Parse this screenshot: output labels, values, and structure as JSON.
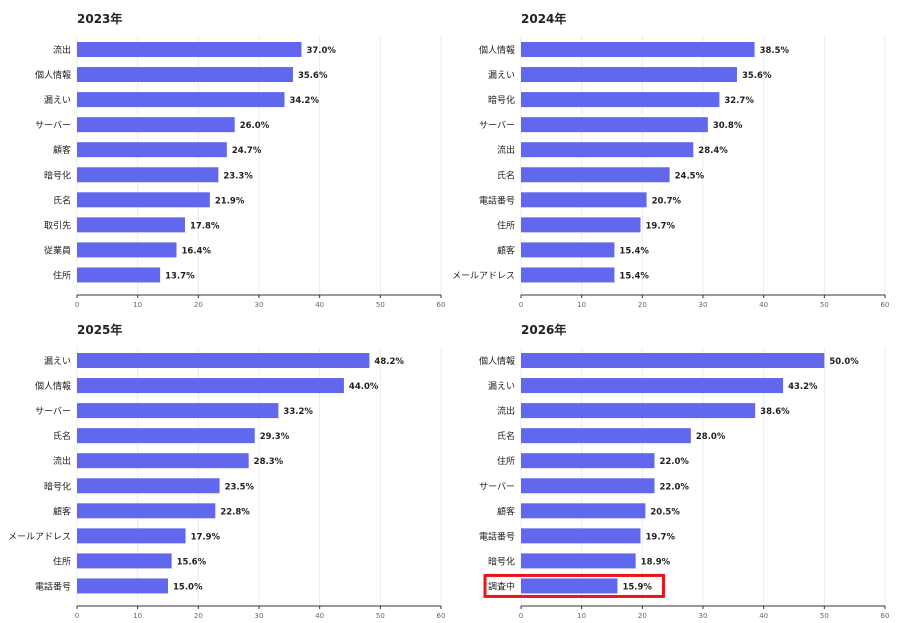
{
  "colors": {
    "bar": "#6168ee",
    "grid": "#ececec",
    "axis": "#333333",
    "label": "#222222",
    "tick": "#666666",
    "highlight": "#e8141e"
  },
  "chart_data": [
    {
      "type": "bar",
      "orientation": "horizontal",
      "title": "2023年",
      "categories": [
        "流出",
        "個人情報",
        "漏えい",
        "サーバー",
        "顧客",
        "暗号化",
        "氏名",
        "取引先",
        "従業員",
        "住所"
      ],
      "values": [
        37.0,
        35.6,
        34.2,
        26.0,
        24.7,
        23.3,
        21.9,
        17.8,
        16.4,
        13.7
      ],
      "data_labels": [
        "37.0%",
        "35.6%",
        "34.2%",
        "26.0%",
        "24.7%",
        "23.3%",
        "21.9%",
        "17.8%",
        "16.4%",
        "13.7%"
      ],
      "xlim": [
        0,
        60
      ],
      "xticks": [
        "0",
        "10",
        "20",
        "30",
        "40",
        "50",
        "60"
      ],
      "grid": true,
      "highlight": null
    },
    {
      "type": "bar",
      "orientation": "horizontal",
      "title": "2024年",
      "categories": [
        "個人情報",
        "漏えい",
        "暗号化",
        "サーバー",
        "流出",
        "氏名",
        "電話番号",
        "住所",
        "顧客",
        "メールアドレス"
      ],
      "values": [
        38.5,
        35.6,
        32.7,
        30.8,
        28.4,
        24.5,
        20.7,
        19.7,
        15.4,
        15.4
      ],
      "data_labels": [
        "38.5%",
        "35.6%",
        "32.7%",
        "30.8%",
        "28.4%",
        "24.5%",
        "20.7%",
        "19.7%",
        "15.4%",
        "15.4%"
      ],
      "xlim": [
        0,
        60
      ],
      "xticks": [
        "0",
        "10",
        "20",
        "30",
        "40",
        "50",
        "60"
      ],
      "grid": true,
      "highlight": null
    },
    {
      "type": "bar",
      "orientation": "horizontal",
      "title": "2025年",
      "categories": [
        "漏えい",
        "個人情報",
        "サーバー",
        "氏名",
        "流出",
        "暗号化",
        "顧客",
        "メールアドレス",
        "住所",
        "電話番号"
      ],
      "values": [
        48.2,
        44.0,
        33.2,
        29.3,
        28.3,
        23.5,
        22.8,
        17.9,
        15.6,
        15.0
      ],
      "data_labels": [
        "48.2%",
        "44.0%",
        "33.2%",
        "29.3%",
        "28.3%",
        "23.5%",
        "22.8%",
        "17.9%",
        "15.6%",
        "15.0%"
      ],
      "xlim": [
        0,
        60
      ],
      "xticks": [
        "0",
        "10",
        "20",
        "30",
        "40",
        "50",
        "60"
      ],
      "grid": true,
      "highlight": null
    },
    {
      "type": "bar",
      "orientation": "horizontal",
      "title": "2026年",
      "categories": [
        "個人情報",
        "漏えい",
        "流出",
        "氏名",
        "住所",
        "サーバー",
        "顧客",
        "電話番号",
        "暗号化",
        "調査中"
      ],
      "values": [
        50.0,
        43.2,
        38.6,
        28.0,
        22.0,
        22.0,
        20.5,
        19.7,
        18.9,
        15.9
      ],
      "data_labels": [
        "50.0%",
        "43.2%",
        "38.6%",
        "28.0%",
        "22.0%",
        "22.0%",
        "20.5%",
        "19.7%",
        "18.9%",
        "15.9%"
      ],
      "xlim": [
        0,
        60
      ],
      "xticks": [
        "0",
        "10",
        "20",
        "30",
        "40",
        "50",
        "60"
      ],
      "grid": true,
      "highlight": "調査中"
    }
  ]
}
